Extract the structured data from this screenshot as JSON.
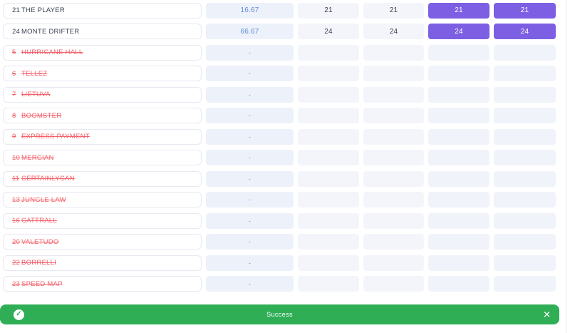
{
  "colors": {
    "accent": "#7C5FE3",
    "success": "#2FAE56",
    "scratched": "#F4626C",
    "blue": "#5F8DD8"
  },
  "table": {
    "rows": [
      {
        "number": "21",
        "name": "THE PLAYER",
        "scratched": false,
        "percent": "16.67",
        "odds1": "21",
        "odds2": "21",
        "selected1": "21",
        "selected2": "21"
      },
      {
        "number": "24",
        "name": "MONTE DRIFTER",
        "scratched": false,
        "percent": "66.67",
        "odds1": "24",
        "odds2": "24",
        "selected1": "24",
        "selected2": "24"
      },
      {
        "number": "5",
        "name": "HURRICANE HALL",
        "scratched": true,
        "percent": "-",
        "odds1": "",
        "odds2": "",
        "selected1": "",
        "selected2": ""
      },
      {
        "number": "6",
        "name": "TELLEZ",
        "scratched": true,
        "percent": "-",
        "odds1": "",
        "odds2": "",
        "selected1": "",
        "selected2": ""
      },
      {
        "number": "7",
        "name": "LIETUVA",
        "scratched": true,
        "percent": "-",
        "odds1": "",
        "odds2": "",
        "selected1": "",
        "selected2": ""
      },
      {
        "number": "8",
        "name": "BOOMSTER",
        "scratched": true,
        "percent": "-",
        "odds1": "",
        "odds2": "",
        "selected1": "",
        "selected2": ""
      },
      {
        "number": "9",
        "name": "EXPRESS PAYMENT",
        "scratched": true,
        "percent": "-",
        "odds1": "",
        "odds2": "",
        "selected1": "",
        "selected2": ""
      },
      {
        "number": "10",
        "name": "MERCIAN",
        "scratched": true,
        "percent": "-",
        "odds1": "",
        "odds2": "",
        "selected1": "",
        "selected2": ""
      },
      {
        "number": "11",
        "name": "CERTAINLYCAN",
        "scratched": true,
        "percent": "-",
        "odds1": "",
        "odds2": "",
        "selected1": "",
        "selected2": ""
      },
      {
        "number": "13",
        "name": "JUNGLE LAW",
        "scratched": true,
        "percent": "-",
        "odds1": "",
        "odds2": "",
        "selected1": "",
        "selected2": ""
      },
      {
        "number": "16",
        "name": "CATTRALL",
        "scratched": true,
        "percent": "-",
        "odds1": "",
        "odds2": "",
        "selected1": "",
        "selected2": ""
      },
      {
        "number": "20",
        "name": "VALETUDO",
        "scratched": true,
        "percent": "-",
        "odds1": "",
        "odds2": "",
        "selected1": "",
        "selected2": ""
      },
      {
        "number": "22",
        "name": "BORRELLI",
        "scratched": true,
        "percent": "-",
        "odds1": "",
        "odds2": "",
        "selected1": "",
        "selected2": ""
      },
      {
        "number": "23",
        "name": "SPEED MAP",
        "scratched": true,
        "percent": "-",
        "odds1": "",
        "odds2": "",
        "selected1": "",
        "selected2": ""
      }
    ]
  },
  "toast": {
    "message": "Success",
    "check_icon": "✓",
    "close_icon": "✕"
  }
}
